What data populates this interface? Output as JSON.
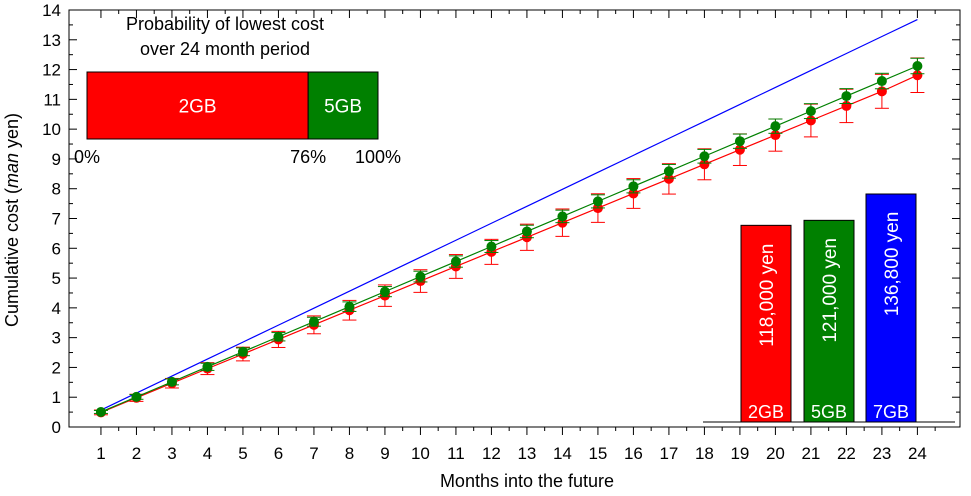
{
  "chart_data": {
    "type": "line",
    "xlabel": "Months into the future",
    "ylabel_prefix": "Cumulative cost (",
    "ylabel_italic": "man",
    "ylabel_suffix": " yen)",
    "xlim": [
      0.1,
      25.2
    ],
    "ylim": [
      0,
      14
    ],
    "x": [
      1,
      2,
      3,
      4,
      5,
      6,
      7,
      8,
      9,
      10,
      11,
      12,
      13,
      14,
      15,
      16,
      17,
      18,
      19,
      20,
      21,
      22,
      23,
      24
    ],
    "xticks": [
      1,
      2,
      3,
      4,
      5,
      6,
      7,
      8,
      9,
      10,
      11,
      12,
      13,
      14,
      15,
      16,
      17,
      18,
      19,
      20,
      21,
      22,
      23,
      24
    ],
    "yticks": [
      0,
      1,
      2,
      3,
      4,
      5,
      6,
      7,
      8,
      9,
      10,
      11,
      12,
      13,
      14
    ],
    "series": [
      {
        "name": "7GB",
        "color": "#0000ff",
        "style": "line",
        "values": [
          0.57,
          1.14,
          1.71,
          2.28,
          2.85,
          3.42,
          3.99,
          4.56,
          5.13,
          5.7,
          6.27,
          6.84,
          7.41,
          7.98,
          8.55,
          9.12,
          9.69,
          10.26,
          10.83,
          11.4,
          11.97,
          12.54,
          13.11,
          13.68
        ]
      },
      {
        "name": "2GB",
        "color": "#ff0000",
        "style": "line-markers-errorbars",
        "values": [
          0.49,
          0.98,
          1.47,
          1.96,
          2.45,
          2.94,
          3.43,
          3.92,
          4.41,
          4.9,
          5.39,
          5.88,
          6.37,
          6.86,
          7.35,
          7.84,
          8.33,
          8.82,
          9.31,
          9.8,
          10.29,
          10.78,
          11.27,
          11.81
        ],
        "err": [
          0.08,
          0.12,
          0.16,
          0.2,
          0.23,
          0.27,
          0.3,
          0.33,
          0.36,
          0.38,
          0.4,
          0.42,
          0.44,
          0.46,
          0.48,
          0.5,
          0.51,
          0.52,
          0.53,
          0.54,
          0.55,
          0.56,
          0.57,
          0.58
        ]
      },
      {
        "name": "5GB",
        "color": "#008000",
        "style": "line-markers-errorbars",
        "values": [
          0.505,
          1.01,
          1.515,
          2.02,
          2.525,
          3.03,
          3.535,
          4.04,
          4.545,
          5.05,
          5.555,
          6.06,
          6.565,
          7.07,
          7.575,
          8.08,
          8.585,
          9.09,
          9.595,
          10.1,
          10.605,
          11.11,
          11.615,
          12.12
        ],
        "err": [
          0.05,
          0.08,
          0.1,
          0.12,
          0.13,
          0.14,
          0.15,
          0.16,
          0.17,
          0.18,
          0.19,
          0.2,
          0.21,
          0.21,
          0.22,
          0.22,
          0.23,
          0.23,
          0.24,
          0.24,
          0.25,
          0.25,
          0.26,
          0.26
        ]
      }
    ],
    "inset_probability": {
      "title_line1": "Probability of lowest cost",
      "title_line2": "over 24 month period",
      "segments": [
        {
          "label": "2GB",
          "fraction": 0.76,
          "color": "#ff0000"
        },
        {
          "label": "5GB",
          "fraction": 0.24,
          "color": "#008000"
        }
      ],
      "tick_labels": [
        "0%",
        "76%",
        "100%"
      ],
      "tick_values": [
        0,
        0.76,
        1.0
      ]
    },
    "inset_totals": {
      "bars": [
        {
          "plan": "2GB",
          "amount_label": "118,000 yen",
          "value": 11.8,
          "color": "#ff0000"
        },
        {
          "plan": "5GB",
          "amount_label": "121,000 yen",
          "value": 12.1,
          "color": "#008000"
        },
        {
          "plan": "7GB",
          "amount_label": "136,800 yen",
          "value": 13.68,
          "color": "#0000ff"
        }
      ]
    }
  }
}
